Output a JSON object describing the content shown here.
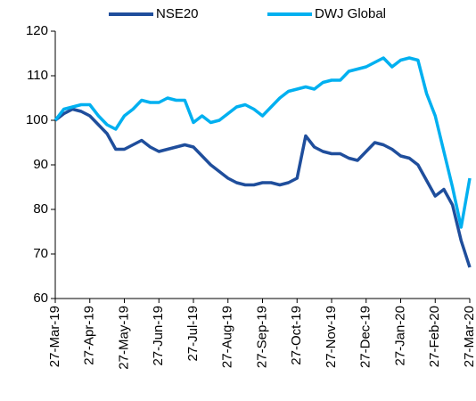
{
  "chart_data": {
    "type": "line",
    "x": [
      "27-Mar-19",
      null,
      null,
      null,
      "27-Apr-19",
      null,
      null,
      null,
      "27-May-19",
      null,
      null,
      null,
      "27-Jun-19",
      null,
      null,
      null,
      "27-Jul-19",
      null,
      null,
      null,
      "27-Aug-19",
      null,
      null,
      null,
      "27-Sep-19",
      null,
      null,
      null,
      "27-Oct-19",
      null,
      null,
      null,
      "27-Nov-19",
      null,
      null,
      null,
      "27-Dec-19",
      null,
      null,
      null,
      "27-Jan-20",
      null,
      null,
      null,
      "27-Feb-20",
      null,
      null,
      null,
      "27-Mar-20"
    ],
    "series": [
      {
        "name": "NSE20",
        "color": "#1f4e9c",
        "values": [
          100,
          101.5,
          102.5,
          102,
          101,
          99,
          97,
          93.5,
          93.5,
          94.5,
          95.5,
          94,
          93,
          93.5,
          94,
          94.5,
          94,
          92,
          90,
          88.5,
          87,
          86,
          85.5,
          85.5,
          86,
          86,
          85.5,
          86,
          87,
          96.5,
          94,
          93,
          92.5,
          92.5,
          91.5,
          91,
          93,
          95,
          94.5,
          93.5,
          92,
          91.5,
          90,
          86.5,
          83,
          84.5,
          81,
          73,
          67
        ]
      },
      {
        "name": "DWJ Global",
        "color": "#00b0f0",
        "values": [
          100,
          102.5,
          103,
          103.5,
          103.5,
          101,
          99,
          98,
          101,
          102.5,
          104.5,
          104,
          104,
          105,
          104.5,
          104.5,
          99.5,
          101,
          99.5,
          100,
          101.5,
          103,
          103.5,
          102.5,
          101,
          103,
          105,
          106.5,
          107,
          107.5,
          107,
          108.5,
          109,
          109,
          111,
          111.5,
          112,
          113,
          114,
          112,
          113.5,
          114,
          113.5,
          106,
          101,
          93,
          85,
          76,
          87
        ]
      }
    ],
    "ylim": [
      60,
      120
    ],
    "yticks": [
      60,
      70,
      80,
      90,
      100,
      110,
      120
    ],
    "grid": false,
    "legend": "top"
  }
}
